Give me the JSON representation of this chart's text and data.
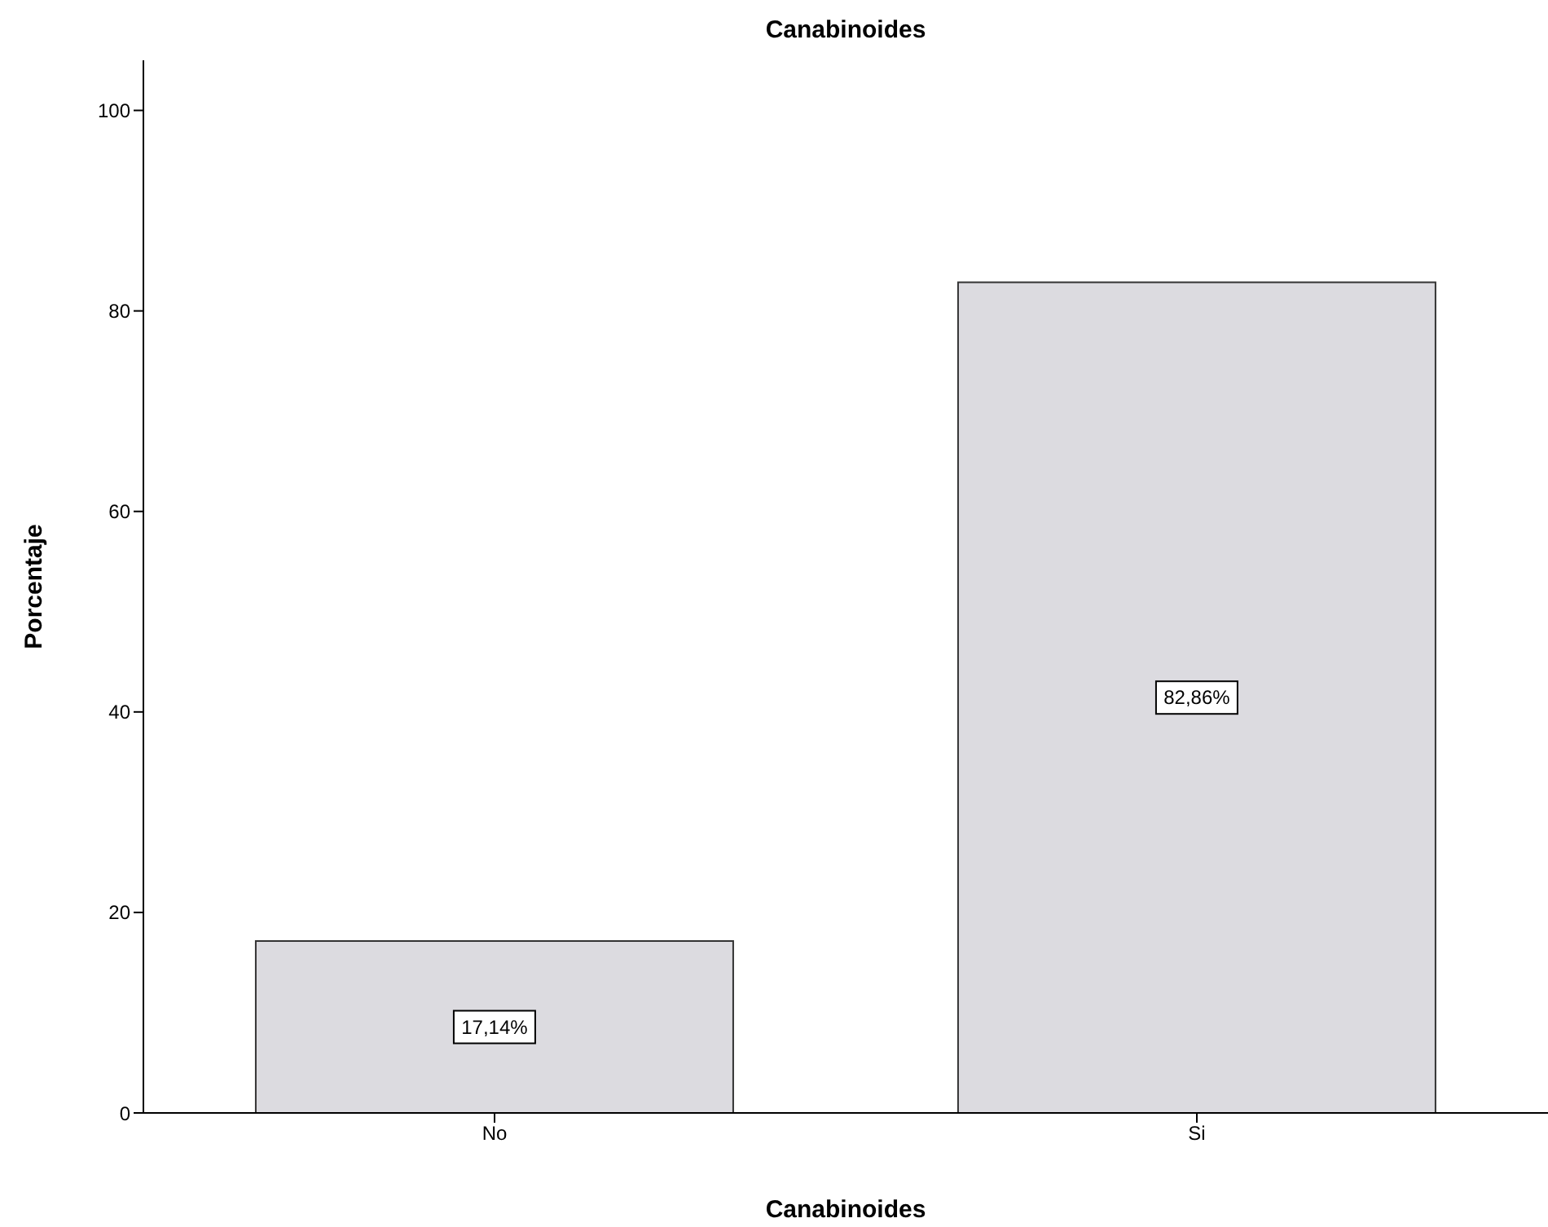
{
  "chart_data": {
    "type": "bar",
    "title": "Canabinoides",
    "xlabel": "Canabinoides",
    "ylabel": "Porcentaje",
    "categories": [
      "No",
      "Si"
    ],
    "values": [
      17.14,
      82.86
    ],
    "value_labels": [
      "17,14%",
      "82,86%"
    ],
    "color": "#dcdbe0",
    "ylim": [
      0,
      105
    ],
    "yticks": [
      0,
      20,
      40,
      60,
      80,
      100
    ],
    "grid": false,
    "legend": false
  }
}
